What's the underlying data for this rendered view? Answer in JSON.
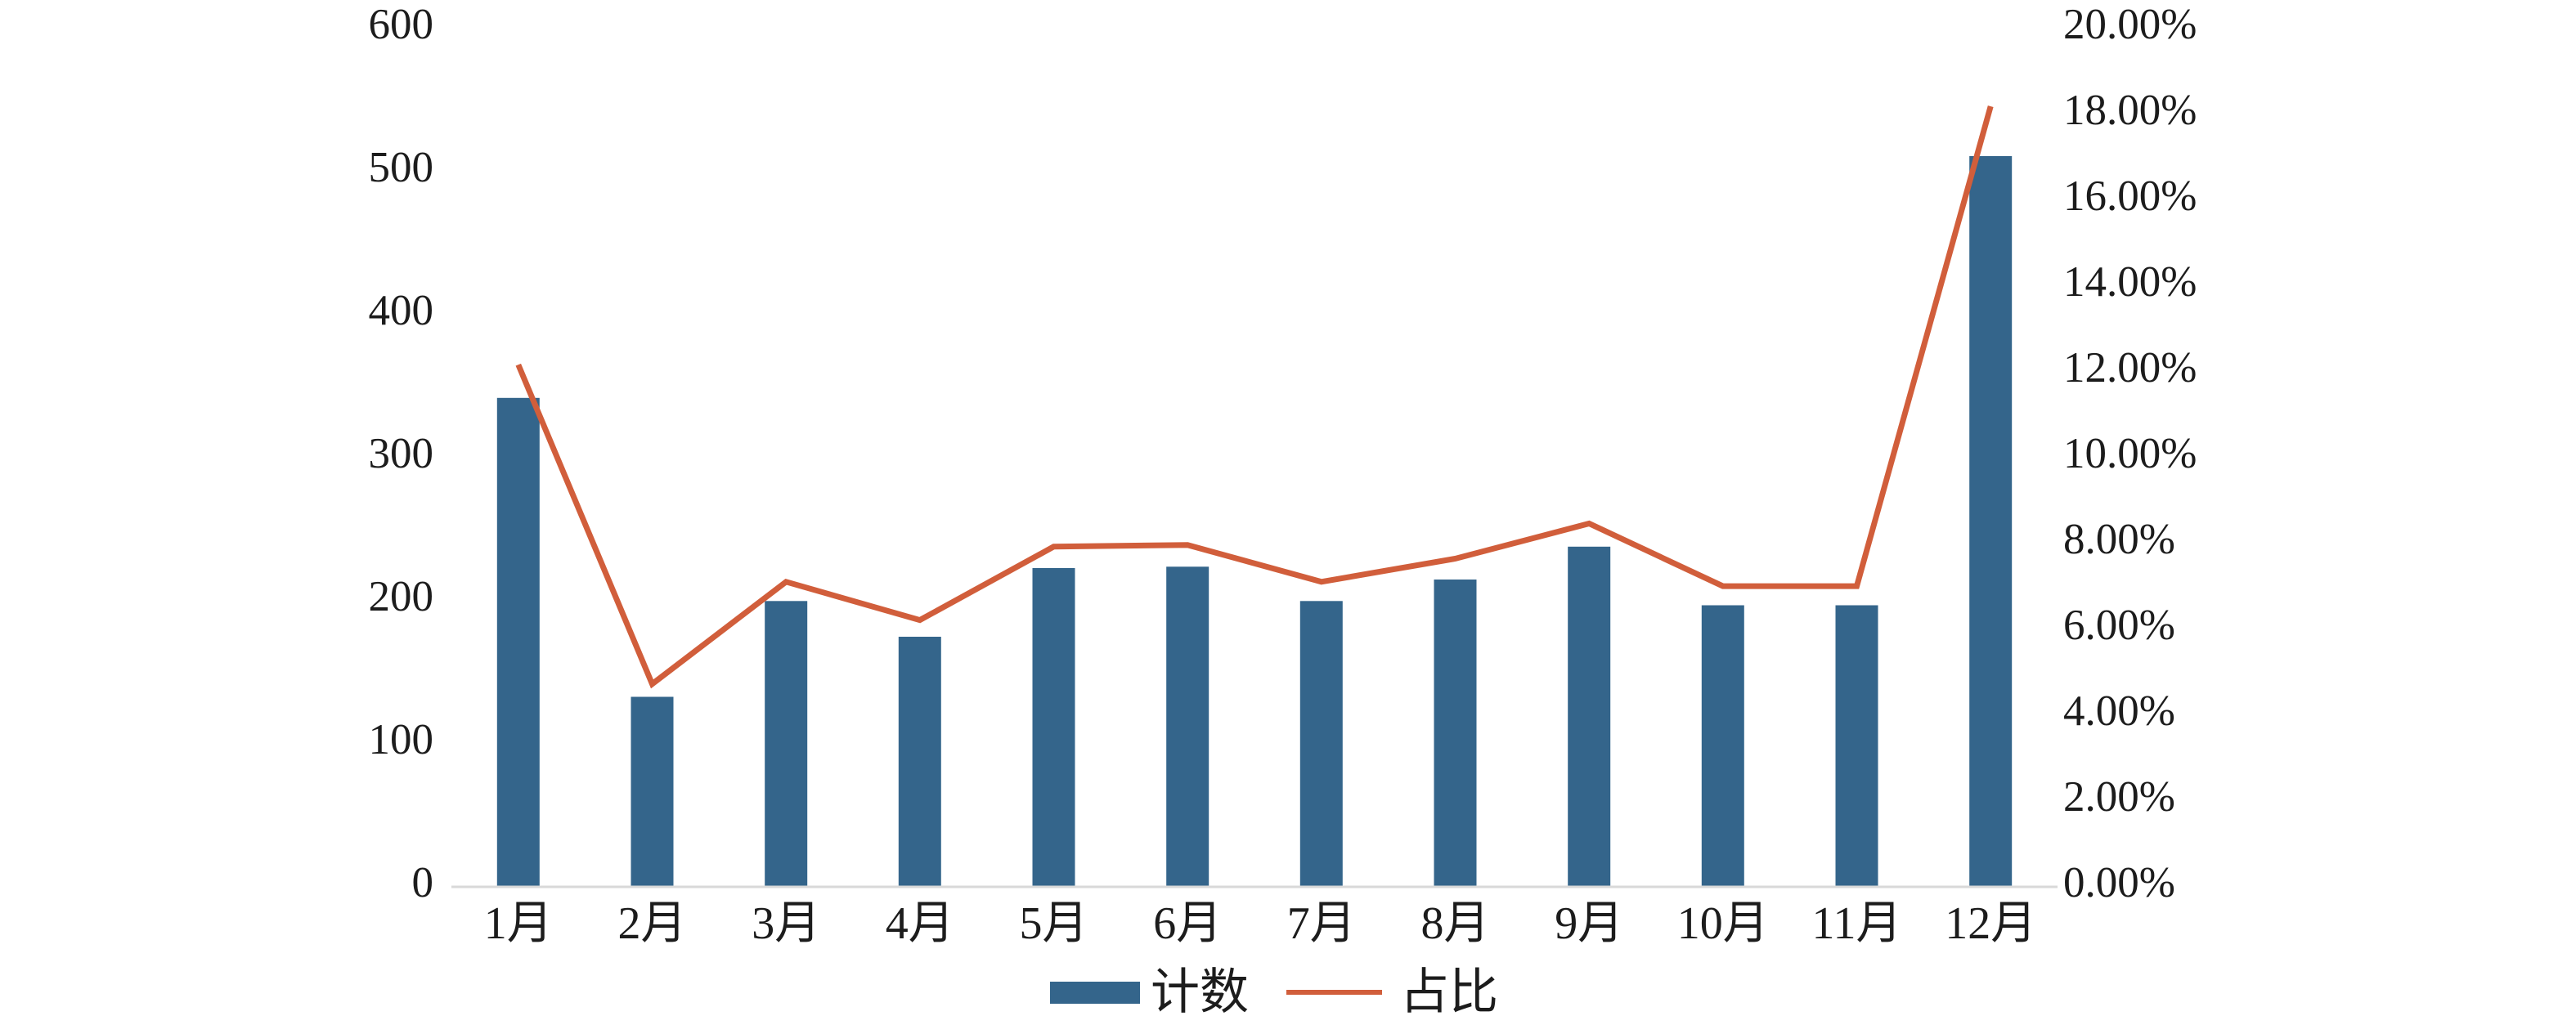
{
  "chart_data": {
    "type": "bar",
    "subtype": "combo-bar-line-dual-axis",
    "title": "",
    "categories": [
      "1月",
      "2月",
      "3月",
      "4月",
      "5月",
      "6月",
      "7月",
      "8月",
      "9月",
      "10月",
      "11月",
      "12月"
    ],
    "series": [
      {
        "name": "计数",
        "type": "bar",
        "axis": "left",
        "color": "#34658B",
        "values": [
          338,
          129,
          196,
          171,
          219,
          220,
          196,
          211,
          234,
          193,
          193,
          507
        ]
      },
      {
        "name": "占比",
        "type": "line",
        "axis": "right",
        "color": "#D15E3B",
        "values_percent": [
          12.04,
          4.6,
          6.98,
          6.09,
          7.8,
          7.84,
          6.98,
          7.52,
          8.34,
          6.88,
          6.88,
          18.06
        ]
      }
    ],
    "left_axis": {
      "min": 0,
      "max": 600,
      "step": 100,
      "ticks": [
        "0",
        "100",
        "200",
        "300",
        "400",
        "500",
        "600"
      ]
    },
    "right_axis": {
      "min_label": "0.00%",
      "max_label": "20.00%",
      "step_label": "2.00%",
      "ticks": [
        "0.00%",
        "2.00%",
        "4.00%",
        "6.00%",
        "8.00%",
        "10.00%",
        "12.00%",
        "14.00%",
        "16.00%",
        "18.00%",
        "20.00%"
      ]
    },
    "legend": {
      "position": "bottom",
      "items": [
        "计数",
        "占比"
      ]
    },
    "grid": false,
    "axis_line_color": "#D9D9D9",
    "text_color": "#1C1C1C",
    "background": "#FFFFFF"
  }
}
